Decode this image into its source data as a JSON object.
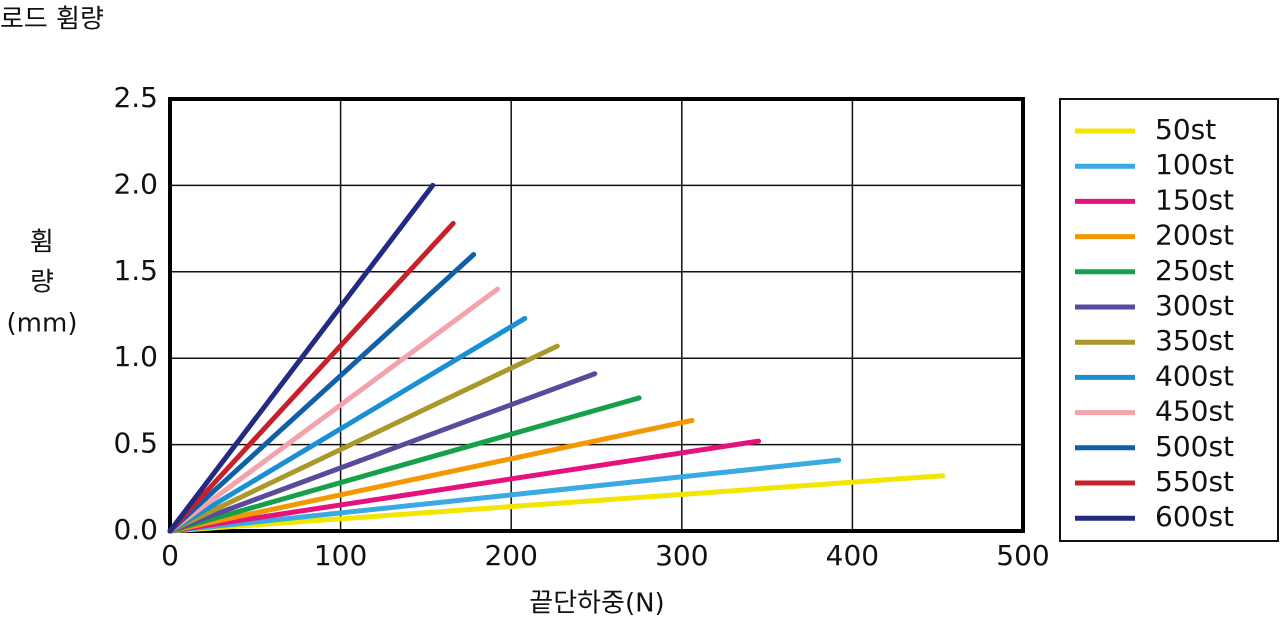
{
  "chart_data": {
    "type": "line",
    "title": "로드 휨량",
    "xlabel": "끝단하중(N)",
    "ylabel": [
      "휨",
      "량",
      "(mm)"
    ],
    "xlim": [
      0,
      500
    ],
    "xticks": [
      0,
      100,
      200,
      300,
      400,
      500
    ],
    "ylim": [
      0,
      2.5
    ],
    "yticks": [
      {
        "value": 0,
        "label": "0.0"
      },
      {
        "value": 0.5,
        "label": "0.5"
      },
      {
        "value": 1,
        "label": "1.0"
      },
      {
        "value": 1.5,
        "label": "1.5"
      },
      {
        "value": 2,
        "label": "2.0"
      },
      {
        "value": 2.5,
        "label": "2.5"
      }
    ],
    "grid": true,
    "legend": "right",
    "series": [
      {
        "name": "50st",
        "color": "#f2e600",
        "x": [
          0,
          453
        ],
        "values": [
          0,
          0.32
        ]
      },
      {
        "name": "100st",
        "color": "#3aaae2",
        "x": [
          0,
          392
        ],
        "values": [
          0,
          0.41
        ]
      },
      {
        "name": "150st",
        "color": "#e5127d",
        "x": [
          0,
          345
        ],
        "values": [
          0,
          0.52
        ]
      },
      {
        "name": "200st",
        "color": "#f39800",
        "x": [
          0,
          306
        ],
        "values": [
          0,
          0.64
        ]
      },
      {
        "name": "250st",
        "color": "#16a04a",
        "x": [
          0,
          275
        ],
        "values": [
          0,
          0.77
        ]
      },
      {
        "name": "300st",
        "color": "#5a4a9c",
        "x": [
          0,
          249
        ],
        "values": [
          0,
          0.91
        ]
      },
      {
        "name": "350st",
        "color": "#ab982a",
        "x": [
          0,
          227
        ],
        "values": [
          0,
          1.07
        ]
      },
      {
        "name": "400st",
        "color": "#1a90d2",
        "x": [
          0,
          208
        ],
        "values": [
          0,
          1.23
        ]
      },
      {
        "name": "450st",
        "color": "#f2a3ab",
        "x": [
          0,
          192
        ],
        "values": [
          0,
          1.4
        ]
      },
      {
        "name": "500st",
        "color": "#1060a8",
        "x": [
          0,
          178
        ],
        "values": [
          0,
          1.6
        ]
      },
      {
        "name": "550st",
        "color": "#c8202a",
        "x": [
          0,
          166
        ],
        "values": [
          0,
          1.78
        ]
      },
      {
        "name": "600st",
        "color": "#222a82",
        "x": [
          0,
          154
        ],
        "values": [
          0,
          2.0
        ]
      }
    ]
  }
}
